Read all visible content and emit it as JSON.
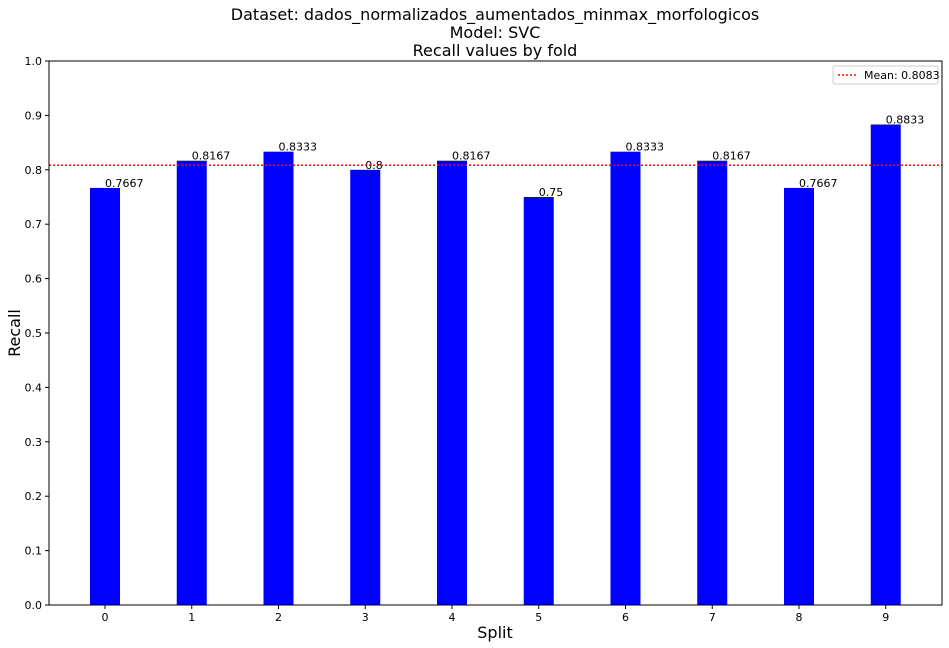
{
  "chart_data": {
    "type": "bar",
    "title_lines": [
      "Dataset: dados_normalizados_aumentados_minmax_morfologicos",
      "Model: SVC",
      "Recall values by fold"
    ],
    "xlabel": "Split",
    "ylabel": "Recall",
    "categories": [
      "0",
      "1",
      "2",
      "3",
      "4",
      "5",
      "6",
      "7",
      "8",
      "9"
    ],
    "values": [
      0.7667,
      0.8167,
      0.8333,
      0.8,
      0.8167,
      0.75,
      0.8333,
      0.8167,
      0.7667,
      0.8833
    ],
    "value_labels": [
      "0.7667",
      "0.8167",
      "0.8333",
      "0.8",
      "0.8167",
      "0.75",
      "0.8333",
      "0.8167",
      "0.7667",
      "0.8833"
    ],
    "ylim": [
      0,
      1
    ],
    "yticks": [
      "0.0",
      "0.1",
      "0.2",
      "0.3",
      "0.4",
      "0.5",
      "0.6",
      "0.7",
      "0.8",
      "0.9",
      "1.0"
    ],
    "mean": 0.8083,
    "legend": {
      "label": "Mean: 0.8083",
      "placement": "top-right"
    },
    "grid": false,
    "colors": {
      "bar": "#0000ff",
      "mean_line": "#ff0000"
    }
  }
}
